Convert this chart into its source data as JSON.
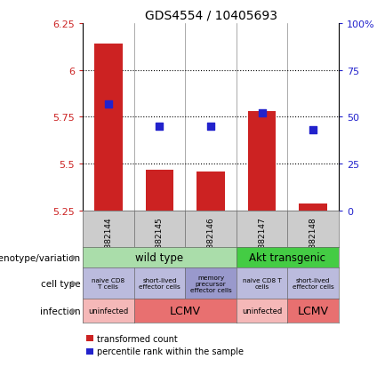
{
  "title": "GDS4554 / 10405693",
  "samples": [
    "GSM882144",
    "GSM882145",
    "GSM882146",
    "GSM882147",
    "GSM882148"
  ],
  "bar_values": [
    6.14,
    5.47,
    5.46,
    5.78,
    5.29
  ],
  "bar_base": 5.25,
  "percentile_values": [
    5.82,
    5.7,
    5.7,
    5.77,
    5.68
  ],
  "bar_color": "#cc2222",
  "dot_color": "#2222cc",
  "ylim_left": [
    5.25,
    6.25
  ],
  "ylim_right": [
    0,
    100
  ],
  "yticks_left": [
    5.25,
    5.5,
    5.75,
    6.0,
    6.25
  ],
  "ytick_labels_left": [
    "5.25",
    "5.5",
    "5.75",
    "6",
    "6.25"
  ],
  "yticks_right": [
    0,
    25,
    50,
    75,
    100
  ],
  "ytick_labels_right": [
    "0",
    "25",
    "50",
    "75",
    "100%"
  ],
  "hlines": [
    5.5,
    5.75,
    6.0
  ],
  "genotype_wild_label": "wild type",
  "genotype_wild_color": "#aaddaa",
  "genotype_akt_label": "Akt transgenic",
  "genotype_akt_color": "#44cc44",
  "cell_labels": [
    "naive CD8\nT cells",
    "short-lived\neffector cells",
    "memory\nprecursor\neffector cells",
    "naive CD8 T\ncells",
    "short-lived\neffector cells"
  ],
  "cell_colors": [
    "#bbbbdd",
    "#bbbbdd",
    "#9999cc",
    "#bbbbdd",
    "#bbbbdd"
  ],
  "infect_labels": [
    "uninfected",
    "LCMV",
    "uninfected",
    "LCMV"
  ],
  "infect_colors": [
    "#f5b8b8",
    "#e87070",
    "#f5b8b8",
    "#e87070"
  ],
  "row_labels": [
    "genotype/variation",
    "cell type",
    "infection"
  ],
  "legend_red_label": "transformed count",
  "legend_blue_label": "percentile rank within the sample",
  "left_label_color": "#cc2222",
  "right_label_color": "#2222cc",
  "sample_box_color": "#cccccc",
  "bg_color": "#ffffff",
  "spine_color": "#888888"
}
